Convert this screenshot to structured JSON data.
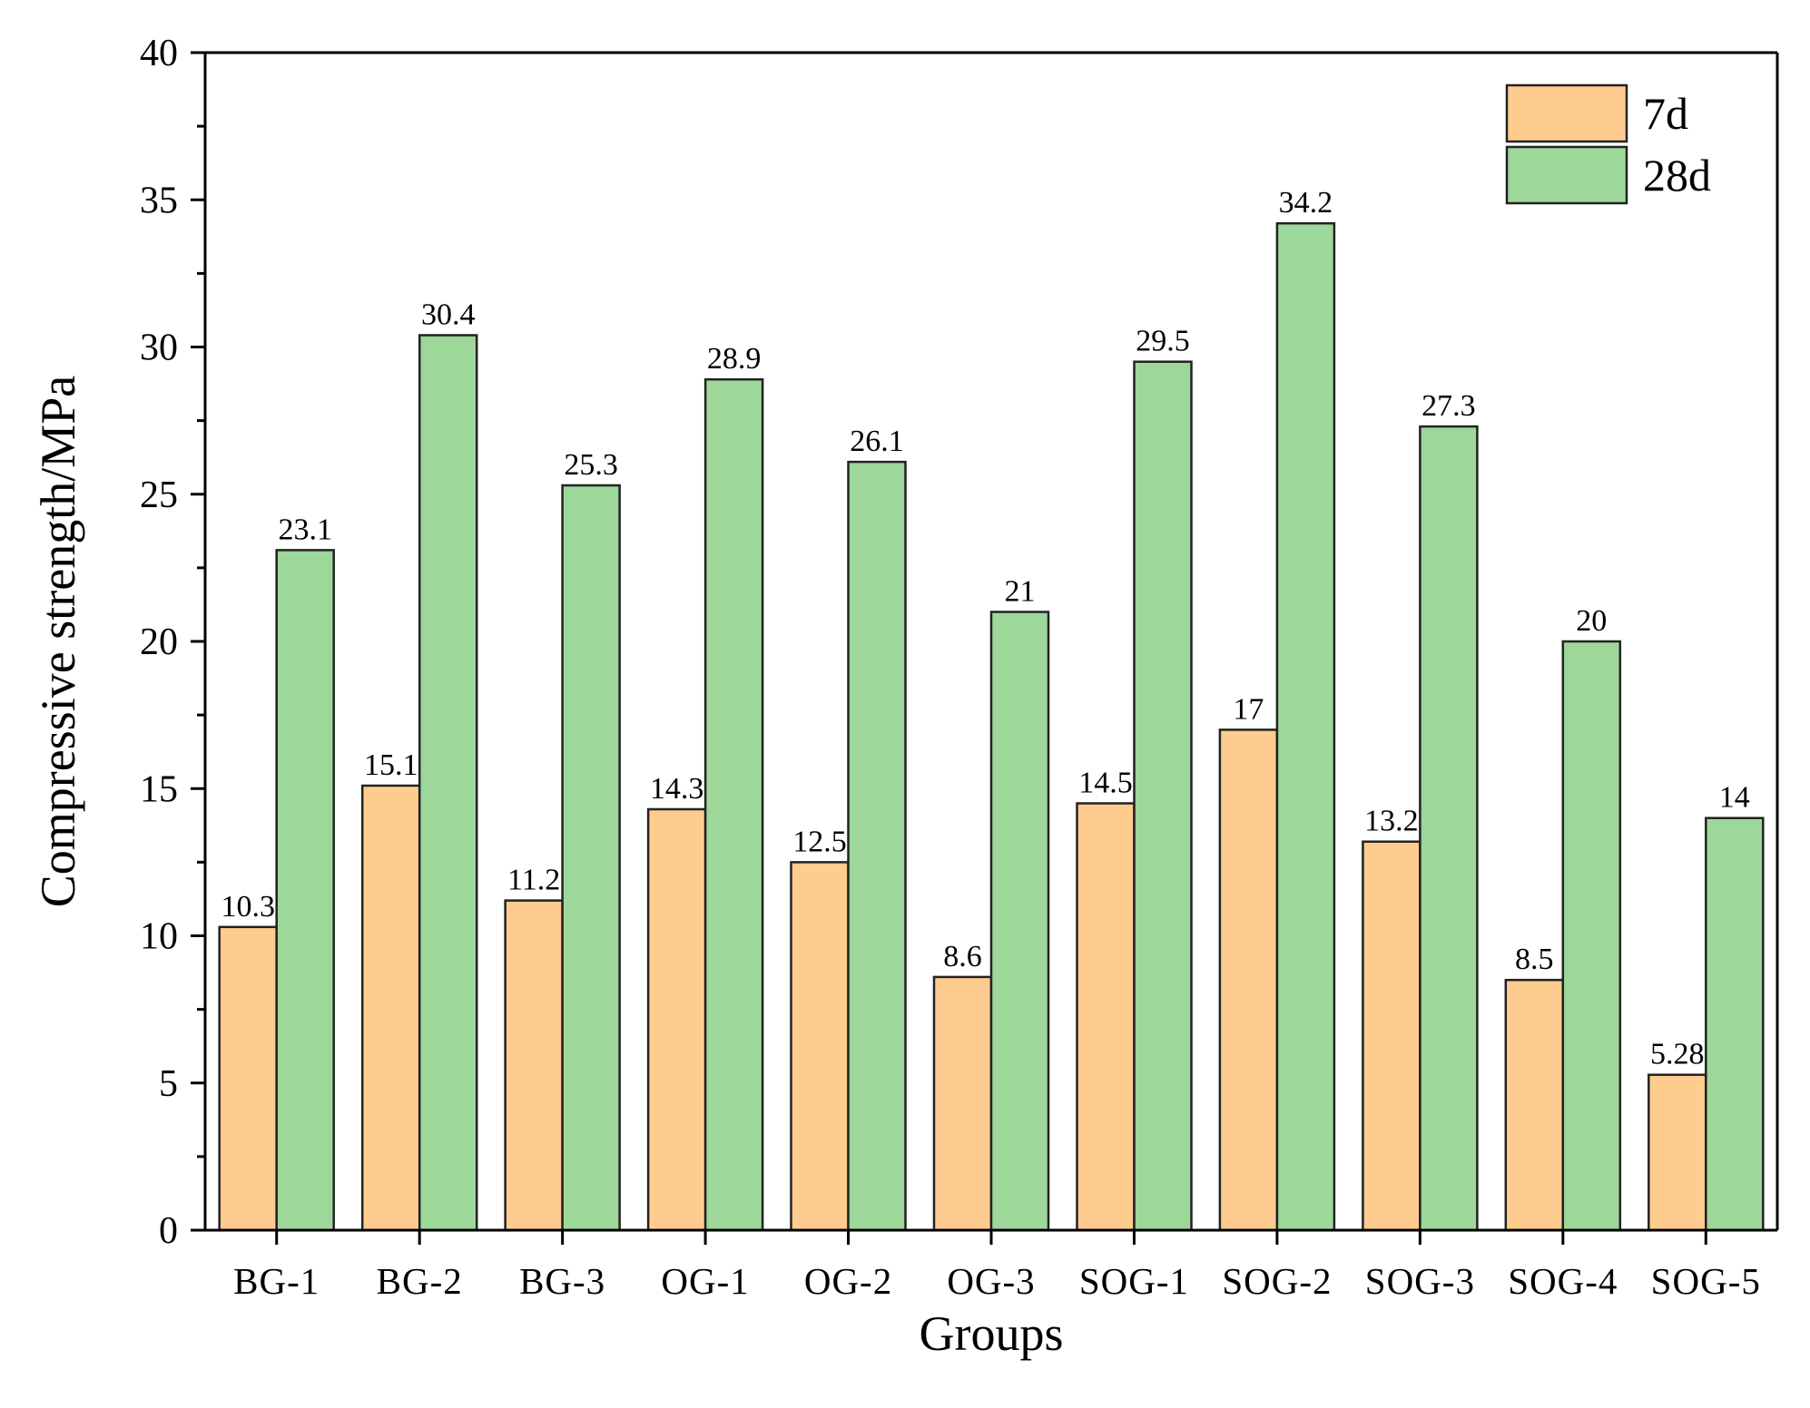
{
  "chart_data": {
    "type": "bar",
    "title": "",
    "xlabel": "Groups",
    "ylabel": "Compressive strength/MPa",
    "ylim": [
      0,
      40
    ],
    "yticks": [
      "0",
      "5",
      "10",
      "15",
      "20",
      "25",
      "30",
      "35",
      "40"
    ],
    "categories": [
      "BG-1",
      "BG-2",
      "BG-3",
      "OG-1",
      "OG-2",
      "OG-3",
      "SOG-1",
      "SOG-2",
      "SOG-3",
      "SOG-4",
      "SOG-5"
    ],
    "series": [
      {
        "name": "7d",
        "color": "#FFCC8F",
        "values": [
          10.3,
          15.1,
          11.2,
          14.3,
          12.5,
          8.6,
          14.5,
          17,
          13.2,
          8.5,
          5.28
        ],
        "labels": [
          "10.3",
          "15.1",
          "11.2",
          "14.3",
          "12.5",
          "8.6",
          "14.5",
          "17",
          "13.2",
          "8.5",
          "5.28"
        ]
      },
      {
        "name": "28d",
        "color": "#9DD79A",
        "values": [
          23.1,
          30.4,
          25.3,
          28.9,
          26.1,
          21,
          29.5,
          34.2,
          27.3,
          20,
          14
        ],
        "labels": [
          "23.1",
          "30.4",
          "25.3",
          "28.9",
          "26.1",
          "21",
          "29.5",
          "34.2",
          "27.3",
          "20",
          "14"
        ]
      }
    ],
    "legend": {
      "position": "top-right",
      "entries": [
        "7d",
        "28d"
      ]
    },
    "grid": false
  }
}
